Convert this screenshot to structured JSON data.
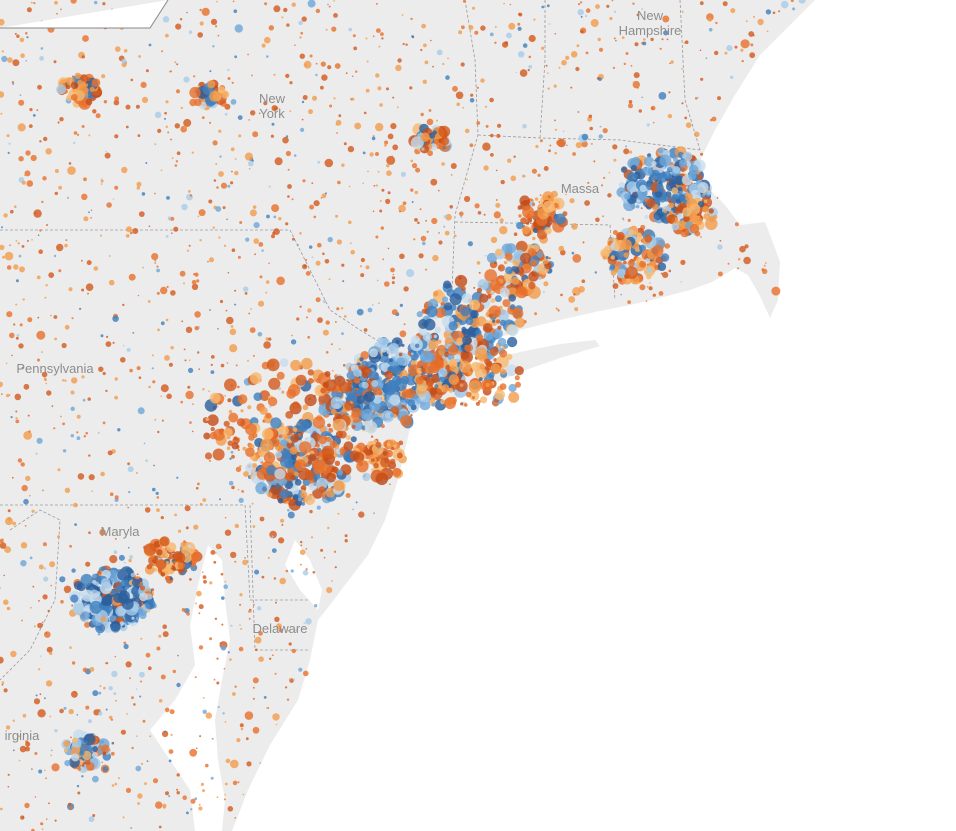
{
  "map": {
    "labels": [
      {
        "lines": [
          "New",
          "Hampshire"
        ]
      },
      {
        "lines": [
          "New",
          "York"
        ]
      },
      {
        "lines": [
          "Massa"
        ]
      },
      {
        "lines": [
          "Pennsylvania"
        ]
      },
      {
        "lines": [
          "Maryla"
        ]
      },
      {
        "lines": [
          "Delaware"
        ]
      },
      {
        "lines": [
          "irginia"
        ]
      }
    ]
  }
}
